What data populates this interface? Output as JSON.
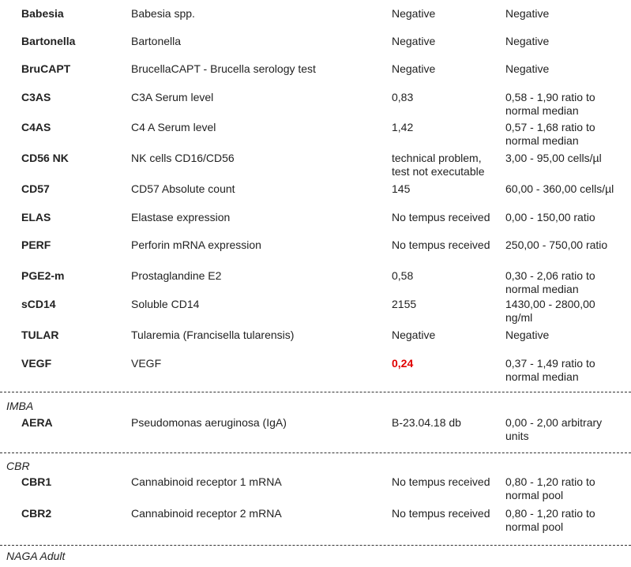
{
  "sections": [
    {
      "rows": [
        {
          "code": "Babesia",
          "name": "Babesia spp.",
          "result": [
            "Negative"
          ],
          "range": [
            "Negative"
          ]
        },
        {
          "code": "Bartonella",
          "name": "Bartonella",
          "result": [
            "Negative"
          ],
          "range": [
            "Negative"
          ]
        },
        {
          "code": "BruCAPT",
          "name": "BrucellaCAPT - Brucella serology test",
          "result": [
            "Negative"
          ],
          "range": [
            "Negative"
          ]
        },
        {
          "code": "C3AS",
          "name": "C3A Serum level",
          "result": [
            "0,83"
          ],
          "range": [
            "0,58 - 1,90 ratio to",
            "normal median"
          ]
        },
        {
          "code": "C4AS",
          "name": "C4 A Serum level",
          "result": [
            "1,42"
          ],
          "range": [
            "0,57 - 1,68 ratio to",
            "normal median"
          ]
        },
        {
          "code": "CD56 NK",
          "name": "NK cells CD16/CD56",
          "result": [
            "technical problem,",
            "test not executable"
          ],
          "range": [
            "3,00 - 95,00 cells/µl"
          ]
        },
        {
          "code": "CD57",
          "name": "CD57 Absolute count",
          "result": [
            "145"
          ],
          "range": [
            "60,00 - 360,00 cells/µl"
          ]
        },
        {
          "code": "ELAS",
          "name": "Elastase expression",
          "result": [
            "No tempus received"
          ],
          "range": [
            "0,00 - 150,00 ratio"
          ]
        },
        {
          "code": "PERF",
          "name": "Perforin mRNA expression",
          "result": [
            "No tempus received"
          ],
          "range": [
            "250,00 - 750,00 ratio"
          ]
        },
        {
          "code": "PGE2-m",
          "name": "Prostaglandine E2",
          "result": [
            "0,58"
          ],
          "range": [
            "0,30 - 2,06 ratio to",
            "normal median"
          ]
        },
        {
          "code": "sCD14",
          "name": "Soluble CD14",
          "result": [
            "2155"
          ],
          "range": [
            "1430,00 - 2800,00",
            "ng/ml"
          ]
        },
        {
          "code": "TULAR",
          "name": "Tularemia (Francisella tularensis)",
          "result": [
            "Negative"
          ],
          "range": [
            "Negative"
          ]
        },
        {
          "code": "VEGF",
          "name": "VEGF",
          "result": [
            "0,24"
          ],
          "result_color": "#e00000",
          "range": [
            "0,37 - 1,49 ratio to",
            "normal median"
          ]
        }
      ]
    },
    {
      "title": "IMBA",
      "rows": [
        {
          "code": "AERA",
          "name": "Pseudomonas aeruginosa (IgA)",
          "result": [
            "B-23.04.18 db"
          ],
          "range": [
            "0,00 - 2,00 arbitrary",
            "units"
          ]
        }
      ]
    },
    {
      "title": "CBR",
      "rows": [
        {
          "code": "CBR1",
          "name": "Cannabinoid receptor 1 mRNA",
          "result": [
            "No tempus received"
          ],
          "range": [
            "0,80 - 1,20 ratio to",
            "normal pool"
          ]
        },
        {
          "code": "CBR2",
          "name": "Cannabinoid receptor 2 mRNA",
          "result": [
            "No tempus received"
          ],
          "range": [
            "0,80 - 1,20 ratio to",
            "normal pool"
          ]
        }
      ]
    },
    {
      "title": "NAGA Adult",
      "rows": []
    }
  ]
}
